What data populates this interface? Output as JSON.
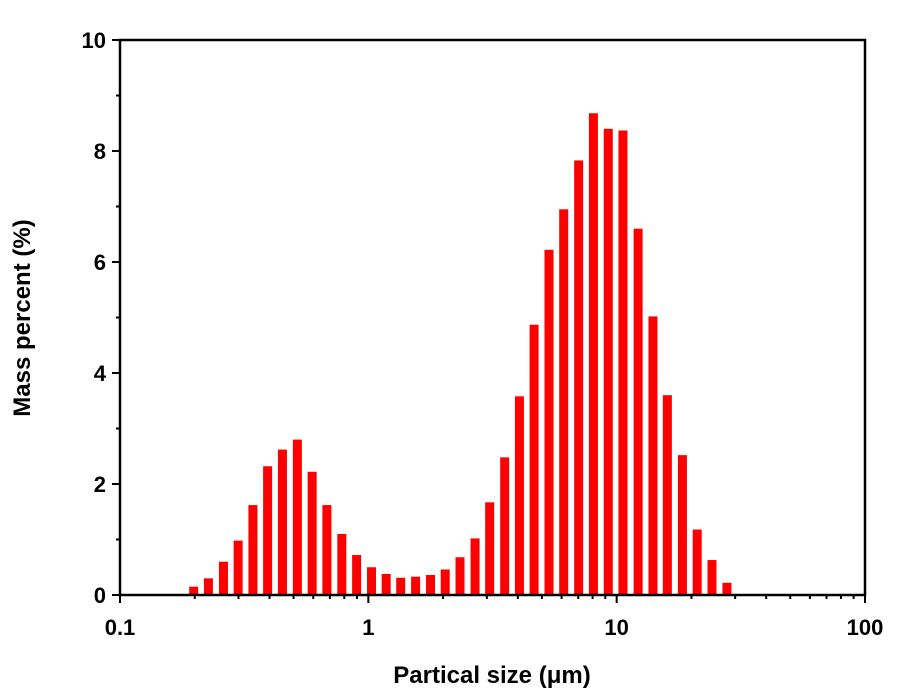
{
  "chart_data": {
    "type": "bar",
    "xlabel": "Partical size (μm)",
    "ylabel": "Mass percent (%)",
    "x_scale": "log",
    "xlim": [
      0.1,
      100
    ],
    "ylim": [
      0,
      10
    ],
    "x_ticks": [
      {
        "value": 0.1,
        "label": "0.1"
      },
      {
        "value": 1,
        "label": "1"
      },
      {
        "value": 10,
        "label": "10"
      },
      {
        "value": 100,
        "label": "100"
      }
    ],
    "y_ticks": [
      {
        "value": 0,
        "label": "0"
      },
      {
        "value": 2,
        "label": "2"
      },
      {
        "value": 4,
        "label": "4"
      },
      {
        "value": 6,
        "label": "6"
      },
      {
        "value": 8,
        "label": "8"
      },
      {
        "value": 10,
        "label": "10"
      }
    ],
    "bar_color": "#ff0000",
    "grid": false,
    "x": [
      0.198,
      0.227,
      0.261,
      0.299,
      0.343,
      0.393,
      0.451,
      0.518,
      0.594,
      0.681,
      0.782,
      0.897,
      1.03,
      1.18,
      1.35,
      1.55,
      1.78,
      2.04,
      2.34,
      2.69,
      3.08,
      3.54,
      4.06,
      4.65,
      5.34,
      6.12,
      7.03,
      8.06,
      9.25,
      10.6,
      12.2,
      14.0,
      16.0,
      18.4,
      21.1,
      24.2,
      27.8
    ],
    "values": [
      0.15,
      0.3,
      0.6,
      0.98,
      1.62,
      2.32,
      2.62,
      2.8,
      2.22,
      1.62,
      1.1,
      0.72,
      0.5,
      0.38,
      0.31,
      0.33,
      0.36,
      0.46,
      0.68,
      1.02,
      1.67,
      2.48,
      3.58,
      4.87,
      6.22,
      6.95,
      7.83,
      8.68,
      8.4,
      8.37,
      6.6,
      5.02,
      3.6,
      2.52,
      1.18,
      0.63,
      0.22
    ]
  }
}
